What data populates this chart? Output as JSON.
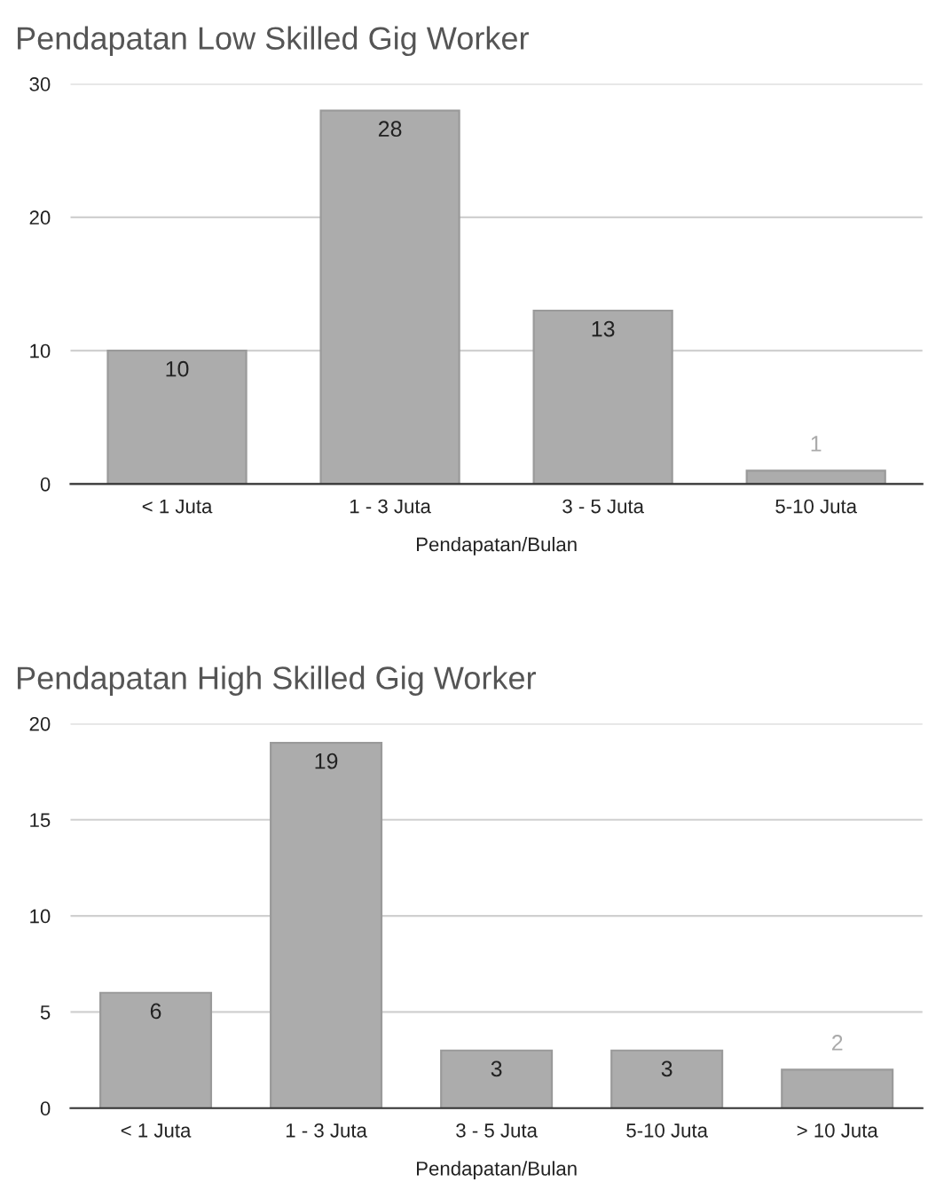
{
  "chart_data": [
    {
      "type": "bar",
      "title": "Pendapatan Low Skilled Gig Worker",
      "xlabel": "Pendapatan/Bulan",
      "categories": [
        "< 1 Juta",
        "1 - 3 Juta",
        "3 - 5 Juta",
        "5-10 Juta"
      ],
      "values": [
        10,
        28,
        13,
        1
      ],
      "color": "#acacac",
      "ylim": [
        0,
        30
      ],
      "yticks": [
        0,
        10,
        20,
        30
      ],
      "grid": "y",
      "data_labels": true
    },
    {
      "type": "bar",
      "title": "Pendapatan High Skilled Gig Worker",
      "xlabel": "Pendapatan/Bulan",
      "categories": [
        "< 1 Juta",
        "1 - 3 Juta",
        "3 - 5 Juta",
        "5-10 Juta",
        "> 10 Juta"
      ],
      "values": [
        6,
        19,
        3,
        3,
        2
      ],
      "color": "#acacac",
      "ylim": [
        0,
        20
      ],
      "yticks": [
        0,
        5,
        10,
        15,
        20
      ],
      "grid": "y",
      "data_labels": true
    }
  ]
}
